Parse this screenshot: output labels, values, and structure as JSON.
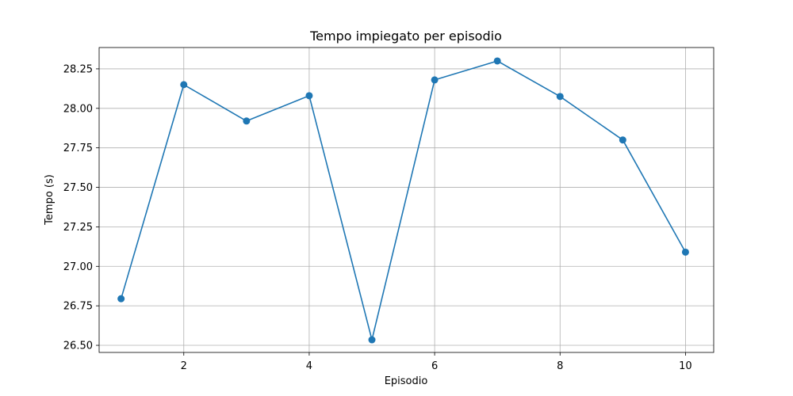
{
  "chart_data": {
    "type": "line",
    "title": "Tempo impiegato per episodio",
    "xlabel": "Episodio",
    "ylabel": "Tempo (s)",
    "x": [
      1,
      2,
      3,
      4,
      5,
      6,
      7,
      8,
      9,
      10
    ],
    "series": [
      {
        "values": [
          26.795,
          28.15,
          27.92,
          28.08,
          26.535,
          28.18,
          28.3,
          28.075,
          27.8,
          27.09
        ],
        "color": "#1f77b4",
        "marker": "circle"
      }
    ],
    "xlim": [
      0.65,
      10.45
    ],
    "ylim": [
      26.455,
      28.385
    ],
    "xticks": [
      2,
      4,
      6,
      8,
      10
    ],
    "xtick_labels": [
      "2",
      "4",
      "6",
      "8",
      "10"
    ],
    "yticks": [
      26.5,
      26.75,
      27.0,
      27.25,
      27.5,
      27.75,
      28.0,
      28.25
    ],
    "ytick_labels": [
      "26.50",
      "26.75",
      "27.00",
      "27.25",
      "27.50",
      "27.75",
      "28.00",
      "28.25"
    ],
    "grid": true,
    "legend": "none"
  }
}
